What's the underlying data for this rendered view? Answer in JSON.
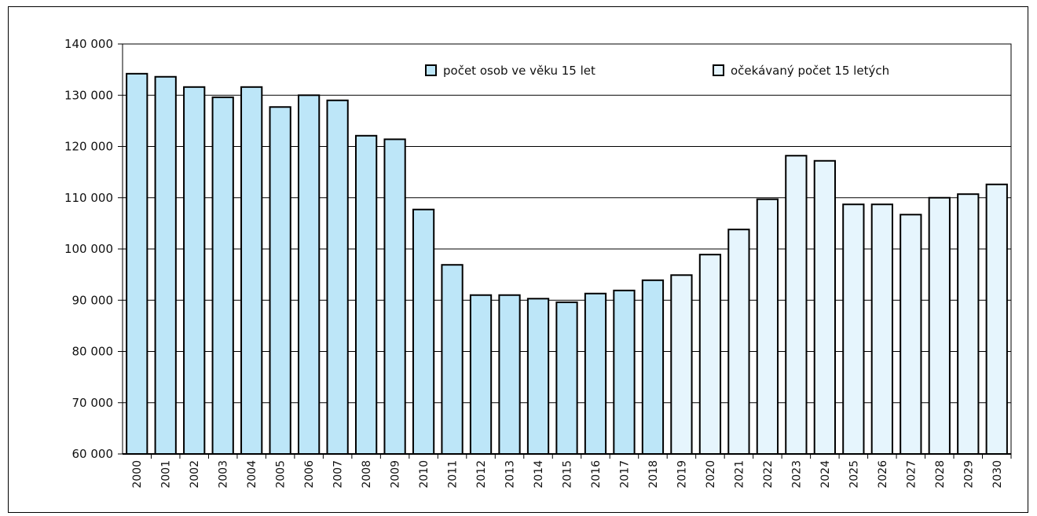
{
  "chart_data": {
    "type": "bar",
    "title": "",
    "xlabel": "",
    "ylabel": "",
    "ylim": [
      60000,
      140000
    ],
    "yticks": [
      60000,
      70000,
      80000,
      90000,
      100000,
      110000,
      120000,
      130000,
      140000
    ],
    "ytick_labels": [
      "60 000",
      "70 000",
      "80 000",
      "90 000",
      "100 000",
      "110 000",
      "120 000",
      "130 000",
      "140 000"
    ],
    "grid": true,
    "legend_position": "top",
    "categories": [
      "2000",
      "2001",
      "2002",
      "2003",
      "2004",
      "2005",
      "2006",
      "2007",
      "2008",
      "2009",
      "2010",
      "2011",
      "2012",
      "2013",
      "2014",
      "2015",
      "2016",
      "2017",
      "2018",
      "2019",
      "2020",
      "2021",
      "2022",
      "2023",
      "2024",
      "2025",
      "2026",
      "2027",
      "2028",
      "2029",
      "2030"
    ],
    "series": [
      {
        "name": "počet osob ve věku 15 let",
        "color": "#bde6f8",
        "values": [
          134200,
          133600,
          131600,
          129600,
          131600,
          127700,
          130000,
          129000,
          122100,
          121400,
          107700,
          96900,
          91000,
          91000,
          90300,
          89600,
          91300,
          91900,
          93900,
          null,
          null,
          null,
          null,
          null,
          null,
          null,
          null,
          null,
          null,
          null,
          null
        ]
      },
      {
        "name": "očekávaný počet 15 letých",
        "color": "#e6f5fd",
        "values": [
          null,
          null,
          null,
          null,
          null,
          null,
          null,
          null,
          null,
          null,
          null,
          null,
          null,
          null,
          null,
          null,
          null,
          null,
          null,
          94900,
          98900,
          103800,
          109700,
          118200,
          117200,
          108700,
          108700,
          106700,
          110000,
          110700,
          112600
        ]
      }
    ]
  }
}
